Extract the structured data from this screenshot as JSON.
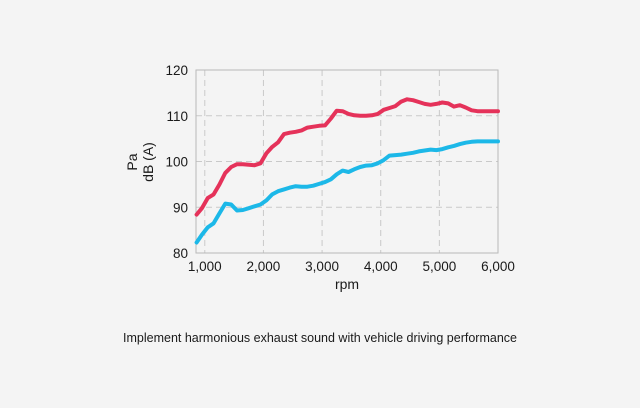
{
  "chart_data": {
    "type": "line",
    "xlabel": "rpm",
    "ylabel_lines": [
      "Pa",
      "dB (A)"
    ],
    "xlim": [
      850,
      6000
    ],
    "ylim": [
      80,
      120
    ],
    "x_ticks": [
      1000,
      2000,
      3000,
      4000,
      5000,
      6000
    ],
    "x_tick_labels": [
      "1,000",
      "2,000",
      "3,000",
      "4,000",
      "5,000",
      "6,000"
    ],
    "y_ticks": [
      80,
      90,
      100,
      110,
      120
    ],
    "y_tick_labels": [
      "80",
      "90",
      "100",
      "110",
      "120"
    ],
    "grid": "dashed",
    "series": [
      {
        "color": "#e5325a",
        "x": [
          860,
          950,
          1050,
          1150,
          1250,
          1350,
          1450,
          1550,
          1650,
          1750,
          1850,
          1950,
          2050,
          2150,
          2250,
          2350,
          2450,
          2550,
          2650,
          2750,
          2850,
          2950,
          3050,
          3150,
          3250,
          3350,
          3450,
          3550,
          3650,
          3750,
          3850,
          3950,
          4050,
          4150,
          4250,
          4350,
          4450,
          4550,
          4650,
          4750,
          4850,
          4950,
          5050,
          5150,
          5250,
          5350,
          5450,
          5550,
          5650,
          5750,
          5850,
          6000
        ],
        "values": [
          88.4,
          89.8,
          92.0,
          92.8,
          95.0,
          97.5,
          98.8,
          99.4,
          99.4,
          99.3,
          99.2,
          99.6,
          101.8,
          103.2,
          104.2,
          106.0,
          106.3,
          106.5,
          106.8,
          107.4,
          107.6,
          107.8,
          107.9,
          109.4,
          111.1,
          111.0,
          110.4,
          110.1,
          110.0,
          110.0,
          110.1,
          110.4,
          111.3,
          111.7,
          112.1,
          113.1,
          113.6,
          113.4,
          113.0,
          112.6,
          112.4,
          112.6,
          112.9,
          112.7,
          112.0,
          112.3,
          111.8,
          111.2,
          111.0,
          111.0,
          111.0,
          111.0
        ]
      },
      {
        "color": "#1cb8e8",
        "x": [
          860,
          950,
          1050,
          1150,
          1250,
          1350,
          1450,
          1550,
          1650,
          1750,
          1850,
          1950,
          2050,
          2150,
          2250,
          2350,
          2450,
          2550,
          2650,
          2750,
          2850,
          2950,
          3050,
          3150,
          3250,
          3350,
          3450,
          3550,
          3650,
          3750,
          3850,
          3950,
          4050,
          4150,
          4250,
          4350,
          4450,
          4550,
          4650,
          4750,
          4850,
          4950,
          5050,
          5150,
          5250,
          5350,
          5450,
          5550,
          5650,
          5750,
          5850,
          6000
        ],
        "values": [
          82.3,
          84.0,
          85.6,
          86.5,
          88.7,
          90.8,
          90.6,
          89.3,
          89.4,
          89.8,
          90.2,
          90.6,
          91.5,
          92.8,
          93.5,
          93.9,
          94.3,
          94.6,
          94.5,
          94.5,
          94.7,
          95.1,
          95.5,
          96.1,
          97.2,
          98.0,
          97.7,
          98.3,
          98.8,
          99.1,
          99.2,
          99.6,
          100.3,
          101.3,
          101.4,
          101.5,
          101.7,
          101.9,
          102.2,
          102.4,
          102.6,
          102.5,
          102.7,
          103.1,
          103.4,
          103.8,
          104.1,
          104.3,
          104.4,
          104.4,
          104.4,
          104.4
        ]
      }
    ]
  },
  "caption": "Implement harmonious exhaust sound with vehicle driving performance"
}
